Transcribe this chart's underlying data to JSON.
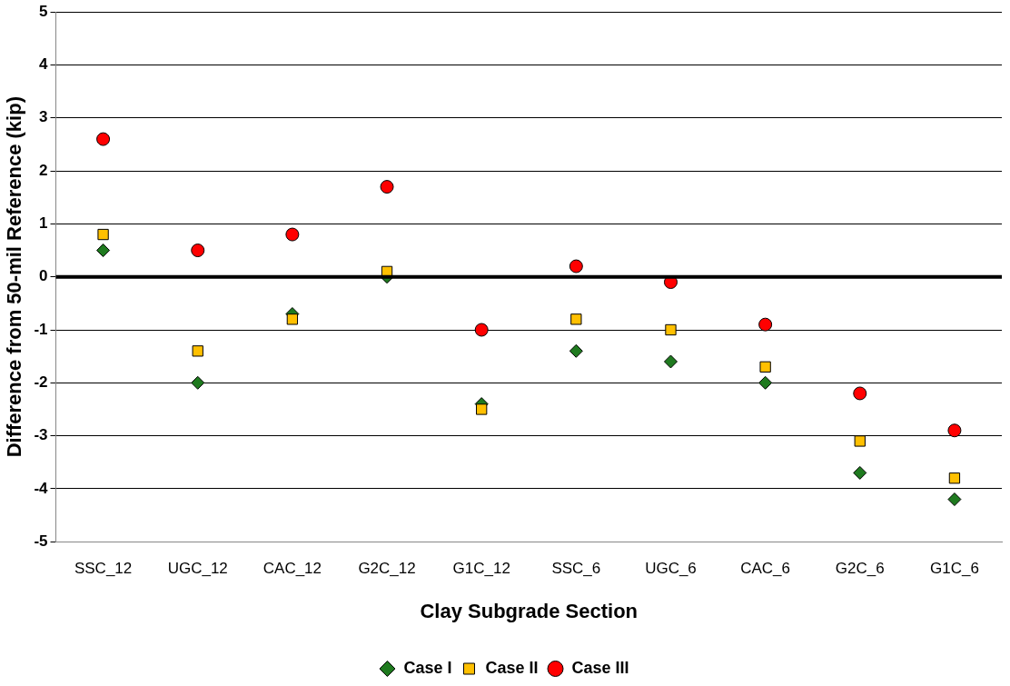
{
  "chart_data": {
    "type": "scatter",
    "xlabel": "Clay Subgrade Section",
    "ylabel": "Difference from 50-mil Reference (kip)",
    "categories": [
      "SSC_12",
      "UGC_12",
      "CAC_12",
      "G2C_12",
      "G1C_12",
      "SSC_6",
      "UGC_6",
      "CAC_6",
      "G2C_6",
      "G1C_6"
    ],
    "series": [
      {
        "name": "Case I",
        "color": "#1f7a1f",
        "marker": "diamond",
        "values": [
          0.5,
          -2.0,
          -0.7,
          0.0,
          -2.4,
          -1.4,
          -1.6,
          -2.0,
          -3.7,
          -4.2
        ]
      },
      {
        "name": "Case II",
        "color": "#ffc000",
        "marker": "square",
        "values": [
          0.8,
          -1.4,
          -0.8,
          0.1,
          -2.5,
          -0.8,
          -1.0,
          -1.7,
          -3.1,
          -3.8
        ]
      },
      {
        "name": "Case III",
        "color": "#ff0000",
        "marker": "circle",
        "values": [
          2.6,
          0.5,
          0.8,
          1.7,
          -1.0,
          0.2,
          -0.1,
          -0.9,
          -2.2,
          -2.9
        ]
      }
    ],
    "ylim": [
      -5,
      5
    ],
    "yticks": [
      -5,
      -4,
      -3,
      -2,
      -1,
      0,
      1,
      2,
      3,
      4,
      5
    ],
    "ref_lines": [
      {
        "axis": "y",
        "value": 0,
        "color": "#000000"
      }
    ],
    "grid": "y",
    "legend": "bottom"
  }
}
